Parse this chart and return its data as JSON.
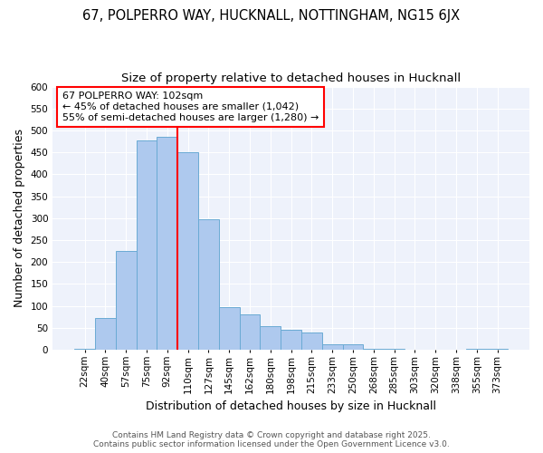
{
  "title_line1": "67, POLPERRO WAY, HUCKNALL, NOTTINGHAM, NG15 6JX",
  "title_line2": "Size of property relative to detached houses in Hucknall",
  "xlabel": "Distribution of detached houses by size in Hucknall",
  "ylabel": "Number of detached properties",
  "bin_labels": [
    "22sqm",
    "40sqm",
    "57sqm",
    "75sqm",
    "92sqm",
    "110sqm",
    "127sqm",
    "145sqm",
    "162sqm",
    "180sqm",
    "198sqm",
    "215sqm",
    "233sqm",
    "250sqm",
    "268sqm",
    "285sqm",
    "303sqm",
    "320sqm",
    "338sqm",
    "355sqm",
    "373sqm"
  ],
  "bin_values": [
    3,
    72,
    225,
    478,
    485,
    450,
    297,
    97,
    80,
    53,
    46,
    40,
    12,
    12,
    3,
    2,
    1,
    0,
    1,
    2,
    2
  ],
  "bar_color": "#aec9ee",
  "bar_edge_color": "#6aaad4",
  "vline_color": "red",
  "vline_x_index": 4.5,
  "annotation_text": "67 POLPERRO WAY: 102sqm\n← 45% of detached houses are smaller (1,042)\n55% of semi-detached houses are larger (1,280) →",
  "annotation_box_color": "white",
  "annotation_box_edge": "red",
  "ylim": [
    0,
    600
  ],
  "yticks": [
    0,
    50,
    100,
    150,
    200,
    250,
    300,
    350,
    400,
    450,
    500,
    550,
    600
  ],
  "plot_bg_color": "#eef2fb",
  "fig_bg_color": "white",
  "footer_text": "Contains HM Land Registry data © Crown copyright and database right 2025.\nContains public sector information licensed under the Open Government Licence v3.0.",
  "title_fontsize": 10.5,
  "subtitle_fontsize": 9.5,
  "axis_label_fontsize": 9,
  "tick_fontsize": 7.5,
  "annotation_fontsize": 8,
  "footer_fontsize": 6.5,
  "ylabel_full": "Number of detached properties"
}
